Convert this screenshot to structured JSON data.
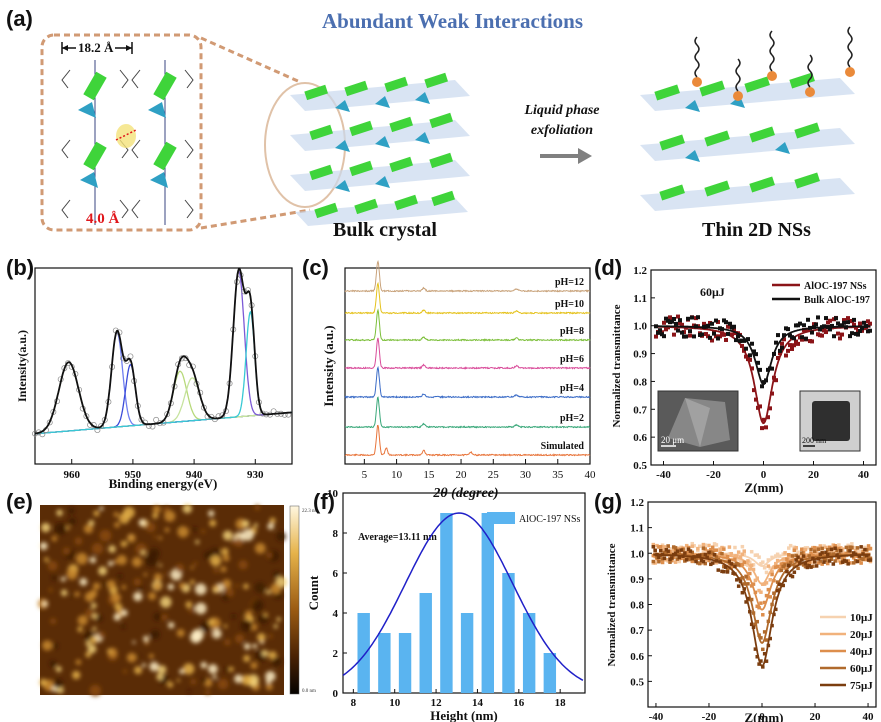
{
  "panel_a": {
    "label": "(a)",
    "banner": "Abundant Weak Interactions",
    "inset_width": "18.2 Å",
    "inset_distance": "4.0 Å",
    "arrow_text_line1": "Liquid phase",
    "arrow_text_line2": "exfoliation",
    "bulk_caption": "Bulk crystal",
    "ns_caption": "Thin 2D NSs"
  },
  "panel_b": {
    "label": "(b)"
  },
  "panel_c": {
    "label": "(c)"
  },
  "panel_d": {
    "label": "(d)",
    "scale1": "20 μm",
    "scale2": "200 nm"
  },
  "panel_e": {
    "label": "(e)",
    "colorbar_top": "22.3 nm",
    "colorbar_bottom": "0.0 nm"
  },
  "panel_f": {
    "label": "(f)"
  },
  "panel_g": {
    "label": "(g)"
  },
  "chart_data": [
    {
      "id": "b",
      "type": "line",
      "title": "",
      "xlabel": "Binding energy(eV)",
      "ylabel": "Intensity(a.u.)",
      "xlim": [
        966,
        924
      ],
      "x_ticks": [
        960,
        950,
        940,
        930
      ],
      "ylim": [
        0,
        1
      ],
      "peaks": [
        {
          "center": 960.5,
          "height": 0.45,
          "width": 1.6,
          "color": "#8fc25a"
        },
        {
          "center": 952.6,
          "height": 0.62,
          "width": 0.9,
          "color": "#6f7ef0"
        },
        {
          "center": 950.4,
          "height": 0.4,
          "width": 0.8,
          "color": "#3b4bd8"
        },
        {
          "center": 942.3,
          "height": 0.33,
          "width": 1.1,
          "color": "#b7d97a"
        },
        {
          "center": 940.3,
          "height": 0.28,
          "width": 1.2,
          "color": "#c6e39e"
        },
        {
          "center": 932.7,
          "height": 0.95,
          "width": 0.9,
          "color": "#7c5ad6"
        },
        {
          "center": 930.8,
          "height": 0.68,
          "width": 0.7,
          "color": "#38c9d4"
        }
      ],
      "background": {
        "x": [
          966,
          924
        ],
        "y": [
          0.08,
          0.22
        ]
      }
    },
    {
      "id": "c",
      "type": "line",
      "title": "",
      "xlabel": "2θ (degree)",
      "ylabel": "Intensity (a.u.)",
      "xlim": [
        2,
        40
      ],
      "x_ticks": [
        5,
        10,
        15,
        20,
        25,
        30,
        35,
        40
      ],
      "peak_positions": [
        7.1,
        8.4,
        14.2,
        21.5,
        28.6
      ],
      "series": [
        {
          "name": "Simulated",
          "color": "#e8743a"
        },
        {
          "name": "pH=2",
          "color": "#3aa87a"
        },
        {
          "name": "pH=4",
          "color": "#3b6cc7"
        },
        {
          "name": "pH=6",
          "color": "#d94c9a"
        },
        {
          "name": "pH=8",
          "color": "#7cbf3a"
        },
        {
          "name": "pH=10",
          "color": "#e5c21c"
        },
        {
          "name": "pH=12",
          "color": "#c8a27a"
        }
      ]
    },
    {
      "id": "d",
      "type": "scatter",
      "title": "",
      "xlabel": "Z(mm)",
      "ylabel": "Normalized transmittance",
      "annotation": "60μJ",
      "xlim": [
        -45,
        45
      ],
      "x_ticks": [
        -40,
        -20,
        0,
        20,
        40
      ],
      "ylim": [
        0.5,
        1.2
      ],
      "y_ticks": [
        0.5,
        0.6,
        0.7,
        0.8,
        0.9,
        1.0,
        1.1,
        1.2
      ],
      "legend_position": "top-right",
      "series": [
        {
          "name": "AlOC-197 NSs",
          "color": "#8b1418",
          "min": 0.65,
          "width": 4.5
        },
        {
          "name": "Bulk AlOC-197",
          "color": "#111111",
          "min": 0.79,
          "width": 4.0
        }
      ]
    },
    {
      "id": "f",
      "type": "bar",
      "title": "",
      "xlabel": "Height (nm)",
      "ylabel": "Count",
      "annotation": "Average=13.11 nm",
      "xlim": [
        7.5,
        19.2
      ],
      "x_ticks": [
        8,
        10,
        12,
        14,
        16,
        18
      ],
      "ylim": [
        0,
        10
      ],
      "y_ticks": [
        0,
        2,
        4,
        6,
        8,
        10
      ],
      "legend_position": "top-right",
      "series_name": "AlOC-197 NSs",
      "bin_centers": [
        8.5,
        9.5,
        10.5,
        11.5,
        12.5,
        13.5,
        14.5,
        15.5,
        16.5,
        17.5
      ],
      "values": [
        4,
        3,
        3,
        5,
        9,
        4,
        9,
        6,
        4,
        2
      ],
      "bar_width": 0.6,
      "fit": {
        "mean": 13.11,
        "sigma": 2.6,
        "peak": 9.0
      }
    },
    {
      "id": "g",
      "type": "scatter",
      "title": "",
      "xlabel": "Z(mm)",
      "ylabel": "Normalized transmittance",
      "xlim": [
        -43,
        43
      ],
      "x_ticks": [
        -40,
        -20,
        0,
        20,
        40
      ],
      "ylim": [
        0.4,
        1.2
      ],
      "y_ticks": [
        0.5,
        0.6,
        0.7,
        0.8,
        0.9,
        1.0,
        1.1,
        1.2
      ],
      "legend_position": "bottom-right",
      "series": [
        {
          "name": "10μJ",
          "color": "#f6d2b0",
          "min": 0.95
        },
        {
          "name": "20μJ",
          "color": "#f1b27c",
          "min": 0.88
        },
        {
          "name": "40μJ",
          "color": "#dd8e4c",
          "min": 0.78
        },
        {
          "name": "60μJ",
          "color": "#b06a2c",
          "min": 0.65
        },
        {
          "name": "75μJ",
          "color": "#7b3d0f",
          "min": 0.56
        }
      ]
    }
  ]
}
